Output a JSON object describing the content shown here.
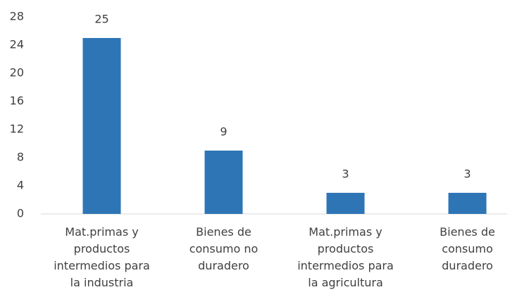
{
  "chart_data": {
    "type": "bar",
    "categories": [
      "Mat.primas y\nproductos\nintermedios para\nla industria",
      "Bienes de\nconsumo no\nduradero",
      "Mat.primas y\nproductos\nintermedios para\nla agricultura",
      "Bienes de\nconsumo\nduradero"
    ],
    "values": [
      25,
      9,
      3,
      3
    ],
    "color": "#2e75b6",
    "ylim": [
      0,
      28
    ],
    "yticks": [
      0,
      4,
      8,
      12,
      16,
      20,
      24,
      28
    ],
    "grid": false
  }
}
